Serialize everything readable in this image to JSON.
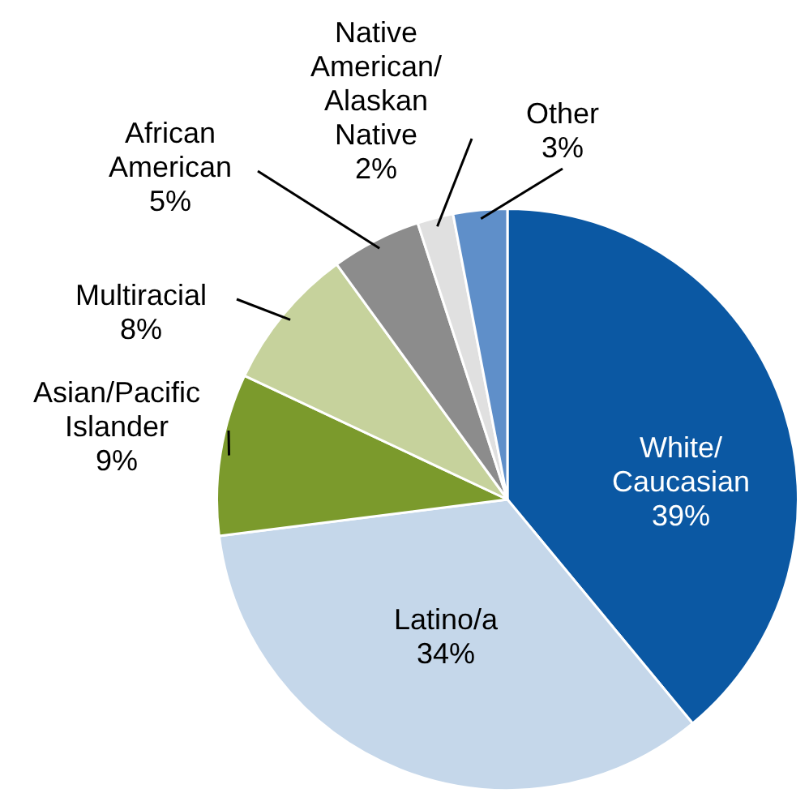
{
  "chart_data": {
    "type": "pie",
    "categories": [
      "White/Caucasian",
      "Latino/a",
      "Asian/Pacific Islander",
      "Multiracial",
      "African American",
      "Native American/Alaskan Native",
      "Other"
    ],
    "values": [
      39,
      34,
      9,
      8,
      5,
      2,
      3
    ],
    "value_labels": [
      "39%",
      "34%",
      "9%",
      "8%",
      "5%",
      "2%",
      "3%"
    ],
    "colors": [
      "#0b58a3",
      "#c5d7ea",
      "#7b9a2c",
      "#c6d29c",
      "#8c8c8c",
      "#e0e0e0",
      "#5f8fc9"
    ],
    "legend": false
  }
}
